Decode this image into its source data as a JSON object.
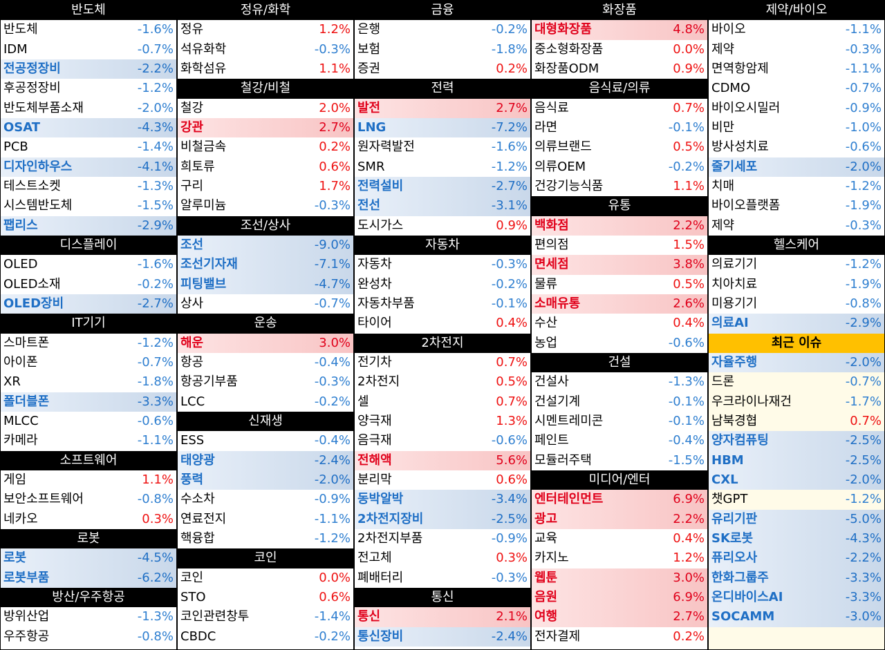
{
  "columns": [
    {
      "blocks": [
        {
          "title": "반도체",
          "rows": [
            {
              "name": "반도체",
              "value": "-1.6%"
            },
            {
              "name": "IDM",
              "value": "-0.7%"
            },
            {
              "name": "전공정장비",
              "value": "-2.2%",
              "hl": "neg"
            },
            {
              "name": "후공정장비",
              "value": "-1.2%"
            },
            {
              "name": "반도체부품소재",
              "value": "-2.0%"
            },
            {
              "name": "OSAT",
              "value": "-4.3%",
              "hl": "neg"
            },
            {
              "name": "PCB",
              "value": "-1.4%"
            },
            {
              "name": "디자인하우스",
              "value": "-4.1%",
              "hl": "neg"
            },
            {
              "name": "테스트소켓",
              "value": "-1.3%"
            },
            {
              "name": "시스템반도체",
              "value": "-1.5%"
            },
            {
              "name": "팹리스",
              "value": "-2.9%",
              "hl": "neg"
            }
          ]
        },
        {
          "title": "디스플레이",
          "rows": [
            {
              "name": "OLED",
              "value": "-1.6%"
            },
            {
              "name": "OLED소재",
              "value": "-0.2%"
            },
            {
              "name": "OLED장비",
              "value": "-2.7%",
              "hl": "neg"
            }
          ]
        },
        {
          "title": "IT기기",
          "rows": [
            {
              "name": "스마트폰",
              "value": "-1.2%"
            },
            {
              "name": "아이폰",
              "value": "-0.7%"
            },
            {
              "name": "XR",
              "value": "-1.8%"
            },
            {
              "name": "폴더블폰",
              "value": "-3.3%",
              "hl": "neg"
            },
            {
              "name": "MLCC",
              "value": "-0.6%"
            },
            {
              "name": "카메라",
              "value": "-1.1%"
            }
          ]
        },
        {
          "title": "소프트웨어",
          "rows": [
            {
              "name": "게임",
              "value": "1.1%"
            },
            {
              "name": "보안소프트웨어",
              "value": "-0.8%"
            },
            {
              "name": "네카오",
              "value": "0.3%"
            }
          ]
        },
        {
          "title": "로봇",
          "rows": [
            {
              "name": "로봇",
              "value": "-4.5%",
              "hl": "neg"
            },
            {
              "name": "로봇부품",
              "value": "-6.2%",
              "hl": "neg"
            }
          ]
        },
        {
          "title": "방산/우주항공",
          "rows": [
            {
              "name": "방위산업",
              "value": "-1.3%"
            },
            {
              "name": "우주항공",
              "value": "-0.8%"
            }
          ]
        }
      ]
    },
    {
      "blocks": [
        {
          "title": "정유/화학",
          "rows": [
            {
              "name": "정유",
              "value": "1.2%"
            },
            {
              "name": "석유화학",
              "value": "-0.3%"
            },
            {
              "name": "화학섬유",
              "value": "1.1%"
            }
          ]
        },
        {
          "title": "철강/비철",
          "rows": [
            {
              "name": "철강",
              "value": "2.0%"
            },
            {
              "name": "강관",
              "value": "2.7%",
              "hl": "pos"
            },
            {
              "name": "비철금속",
              "value": "0.2%"
            },
            {
              "name": "희토류",
              "value": "0.6%"
            },
            {
              "name": "구리",
              "value": "1.7%"
            },
            {
              "name": "알루미늄",
              "value": "-0.3%"
            }
          ]
        },
        {
          "title": "조선/상사",
          "rows": [
            {
              "name": "조선",
              "value": "-9.0%",
              "hl": "neg"
            },
            {
              "name": "조선기자재",
              "value": "-7.1%",
              "hl": "neg"
            },
            {
              "name": "피팅밸브",
              "value": "-4.7%",
              "hl": "neg"
            },
            {
              "name": "상사",
              "value": "-0.7%"
            }
          ]
        },
        {
          "title": "운송",
          "rows": [
            {
              "name": "해운",
              "value": "3.0%",
              "hl": "pos"
            },
            {
              "name": "항공",
              "value": "-0.4%"
            },
            {
              "name": "항공기부품",
              "value": "-0.3%"
            },
            {
              "name": "LCC",
              "value": "-0.2%"
            }
          ]
        },
        {
          "title": "신재생",
          "rows": [
            {
              "name": "ESS",
              "value": "-0.4%"
            },
            {
              "name": "태양광",
              "value": "-2.4%",
              "hl": "neg"
            },
            {
              "name": "풍력",
              "value": "-2.0%",
              "hl": "neg"
            },
            {
              "name": "수소차",
              "value": "-0.9%"
            },
            {
              "name": "연료전지",
              "value": "-1.1%"
            },
            {
              "name": "핵융합",
              "value": "-1.2%"
            }
          ]
        },
        {
          "title": "코인",
          "rows": [
            {
              "name": "코인",
              "value": "0.0%"
            },
            {
              "name": "STO",
              "value": "0.6%"
            },
            {
              "name": "코인관련창투",
              "value": "-1.4%"
            },
            {
              "name": "CBDC",
              "value": "-0.2%"
            }
          ]
        }
      ]
    },
    {
      "blocks": [
        {
          "title": "금융",
          "rows": [
            {
              "name": "은행",
              "value": "-0.2%"
            },
            {
              "name": "보험",
              "value": "-1.8%"
            },
            {
              "name": "증권",
              "value": "0.2%"
            }
          ]
        },
        {
          "title": "전력",
          "rows": [
            {
              "name": "발전",
              "value": "2.7%",
              "hl": "pos"
            },
            {
              "name": "LNG",
              "value": "-7.2%",
              "hl": "neg"
            },
            {
              "name": "원자력발전",
              "value": "-1.6%"
            },
            {
              "name": "SMR",
              "value": "-1.2%"
            },
            {
              "name": "전력설비",
              "value": "-2.7%",
              "hl": "neg"
            },
            {
              "name": "전선",
              "value": "-3.1%",
              "hl": "neg"
            },
            {
              "name": "도시가스",
              "value": "0.9%"
            }
          ]
        },
        {
          "title": "자동차",
          "rows": [
            {
              "name": "자동차",
              "value": "-0.3%"
            },
            {
              "name": "완성차",
              "value": "-0.2%"
            },
            {
              "name": "자동차부품",
              "value": "-0.1%"
            },
            {
              "name": "타이어",
              "value": "0.4%"
            }
          ]
        },
        {
          "title": "2차전지",
          "rows": [
            {
              "name": "전기차",
              "value": "0.7%"
            },
            {
              "name": "2차전지",
              "value": "0.5%"
            },
            {
              "name": "셀",
              "value": "0.7%"
            },
            {
              "name": "양극재",
              "value": "1.3%"
            },
            {
              "name": "음극재",
              "value": "-0.6%"
            },
            {
              "name": "전해액",
              "value": "5.6%",
              "hl": "pos"
            },
            {
              "name": "분리막",
              "value": "0.6%"
            },
            {
              "name": "동박알박",
              "value": "-3.4%",
              "hl": "neg"
            },
            {
              "name": "2차전지장비",
              "value": "-2.5%",
              "hl": "neg"
            },
            {
              "name": "2차전지부품",
              "value": "-0.9%"
            },
            {
              "name": "전고체",
              "value": "0.3%"
            },
            {
              "name": "폐배터리",
              "value": "-0.3%"
            }
          ]
        },
        {
          "title": "통신",
          "rows": [
            {
              "name": "통신",
              "value": "2.1%",
              "hl": "pos"
            },
            {
              "name": "통신장비",
              "value": "-2.4%",
              "hl": "neg"
            }
          ]
        }
      ]
    },
    {
      "blocks": [
        {
          "title": "화장품",
          "rows": [
            {
              "name": "대형화장품",
              "value": "4.8%",
              "hl": "pos"
            },
            {
              "name": "중소형화장품",
              "value": "0.0%"
            },
            {
              "name": "화장품ODM",
              "value": "0.9%"
            }
          ]
        },
        {
          "title": "음식료/의류",
          "rows": [
            {
              "name": "음식료",
              "value": "0.7%"
            },
            {
              "name": "라면",
              "value": "-0.1%"
            },
            {
              "name": "의류브랜드",
              "value": "0.5%"
            },
            {
              "name": "의류OEM",
              "value": "-0.2%"
            },
            {
              "name": "건강기능식품",
              "value": "1.1%"
            }
          ]
        },
        {
          "title": "유통",
          "rows": [
            {
              "name": "백화점",
              "value": "2.2%",
              "hl": "pos"
            },
            {
              "name": "편의점",
              "value": "1.5%"
            },
            {
              "name": "면세점",
              "value": "3.8%",
              "hl": "pos"
            },
            {
              "name": "물류",
              "value": "0.5%"
            },
            {
              "name": "소매유통",
              "value": "2.6%",
              "hl": "pos"
            },
            {
              "name": "수산",
              "value": "0.4%"
            },
            {
              "name": "농업",
              "value": "-0.6%"
            }
          ]
        },
        {
          "title": "건설",
          "rows": [
            {
              "name": "건설사",
              "value": "-1.3%"
            },
            {
              "name": "건설기계",
              "value": "-0.1%"
            },
            {
              "name": "시멘트레미콘",
              "value": "-0.1%"
            },
            {
              "name": "페인트",
              "value": "-0.4%"
            },
            {
              "name": "모듈러주택",
              "value": "-1.5%"
            }
          ]
        },
        {
          "title": "미디어/엔터",
          "rows": [
            {
              "name": "엔터테인먼트",
              "value": "6.9%",
              "hl": "pos"
            },
            {
              "name": "광고",
              "value": "2.2%",
              "hl": "pos"
            },
            {
              "name": "교육",
              "value": "0.4%"
            },
            {
              "name": "카지노",
              "value": "1.2%"
            },
            {
              "name": "웹툰",
              "value": "3.0%",
              "hl": "pos"
            },
            {
              "name": "음원",
              "value": "6.9%",
              "hl": "pos"
            },
            {
              "name": "여행",
              "value": "2.7%",
              "hl": "pos"
            },
            {
              "name": "전자결제",
              "value": "0.2%"
            }
          ]
        }
      ]
    },
    {
      "blocks": [
        {
          "title": "제약/바이오",
          "rows": [
            {
              "name": "바이오",
              "value": "-1.1%"
            },
            {
              "name": "제약",
              "value": "-0.3%"
            },
            {
              "name": "면역항암제",
              "value": "-1.1%"
            },
            {
              "name": "CDMO",
              "value": "-0.7%"
            },
            {
              "name": "바이오시밀러",
              "value": "-0.9%"
            },
            {
              "name": "비만",
              "value": "-1.0%"
            },
            {
              "name": "방사성치료",
              "value": "-0.6%"
            },
            {
              "name": "줄기세포",
              "value": "-2.0%",
              "hl": "neg"
            },
            {
              "name": "치매",
              "value": "-1.2%"
            },
            {
              "name": "바이오플랫폼",
              "value": "-1.9%"
            },
            {
              "name": "제약",
              "value": "-0.3%"
            }
          ]
        },
        {
          "title": "헬스케어",
          "rows": [
            {
              "name": "의료기기",
              "value": "-1.2%"
            },
            {
              "name": "치아치료",
              "value": "-1.9%"
            },
            {
              "name": "미용기기",
              "value": "-0.8%"
            },
            {
              "name": "의료AI",
              "value": "-2.9%",
              "hl": "neg"
            }
          ]
        },
        {
          "title": "최근 이슈",
          "highlight": true,
          "issue": true,
          "rows": [
            {
              "name": "자율주행",
              "value": "-2.0%",
              "hl": "neg"
            },
            {
              "name": "드론",
              "value": "-0.7%"
            },
            {
              "name": "우크라이나재건",
              "value": "-1.7%"
            },
            {
              "name": "남북경협",
              "value": "0.7%"
            },
            {
              "name": "양자컴퓨팅",
              "value": "-2.5%",
              "hl": "neg"
            },
            {
              "name": "HBM",
              "value": "-2.5%",
              "hl": "neg"
            },
            {
              "name": "CXL",
              "value": "-2.0%",
              "hl": "neg"
            },
            {
              "name": "챗GPT",
              "value": "-1.2%"
            },
            {
              "name": "유리기판",
              "value": "-5.0%",
              "hl": "neg"
            },
            {
              "name": "SK로봇",
              "value": "-4.3%",
              "hl": "neg"
            },
            {
              "name": "퓨리오사",
              "value": "-2.2%",
              "hl": "neg"
            },
            {
              "name": "한화그룹주",
              "value": "-3.3%",
              "hl": "neg"
            },
            {
              "name": "온디바이스AI",
              "value": "-3.3%",
              "hl": "neg"
            },
            {
              "name": "SOCAMM",
              "value": "-3.0%",
              "hl": "neg"
            }
          ]
        }
      ]
    }
  ]
}
